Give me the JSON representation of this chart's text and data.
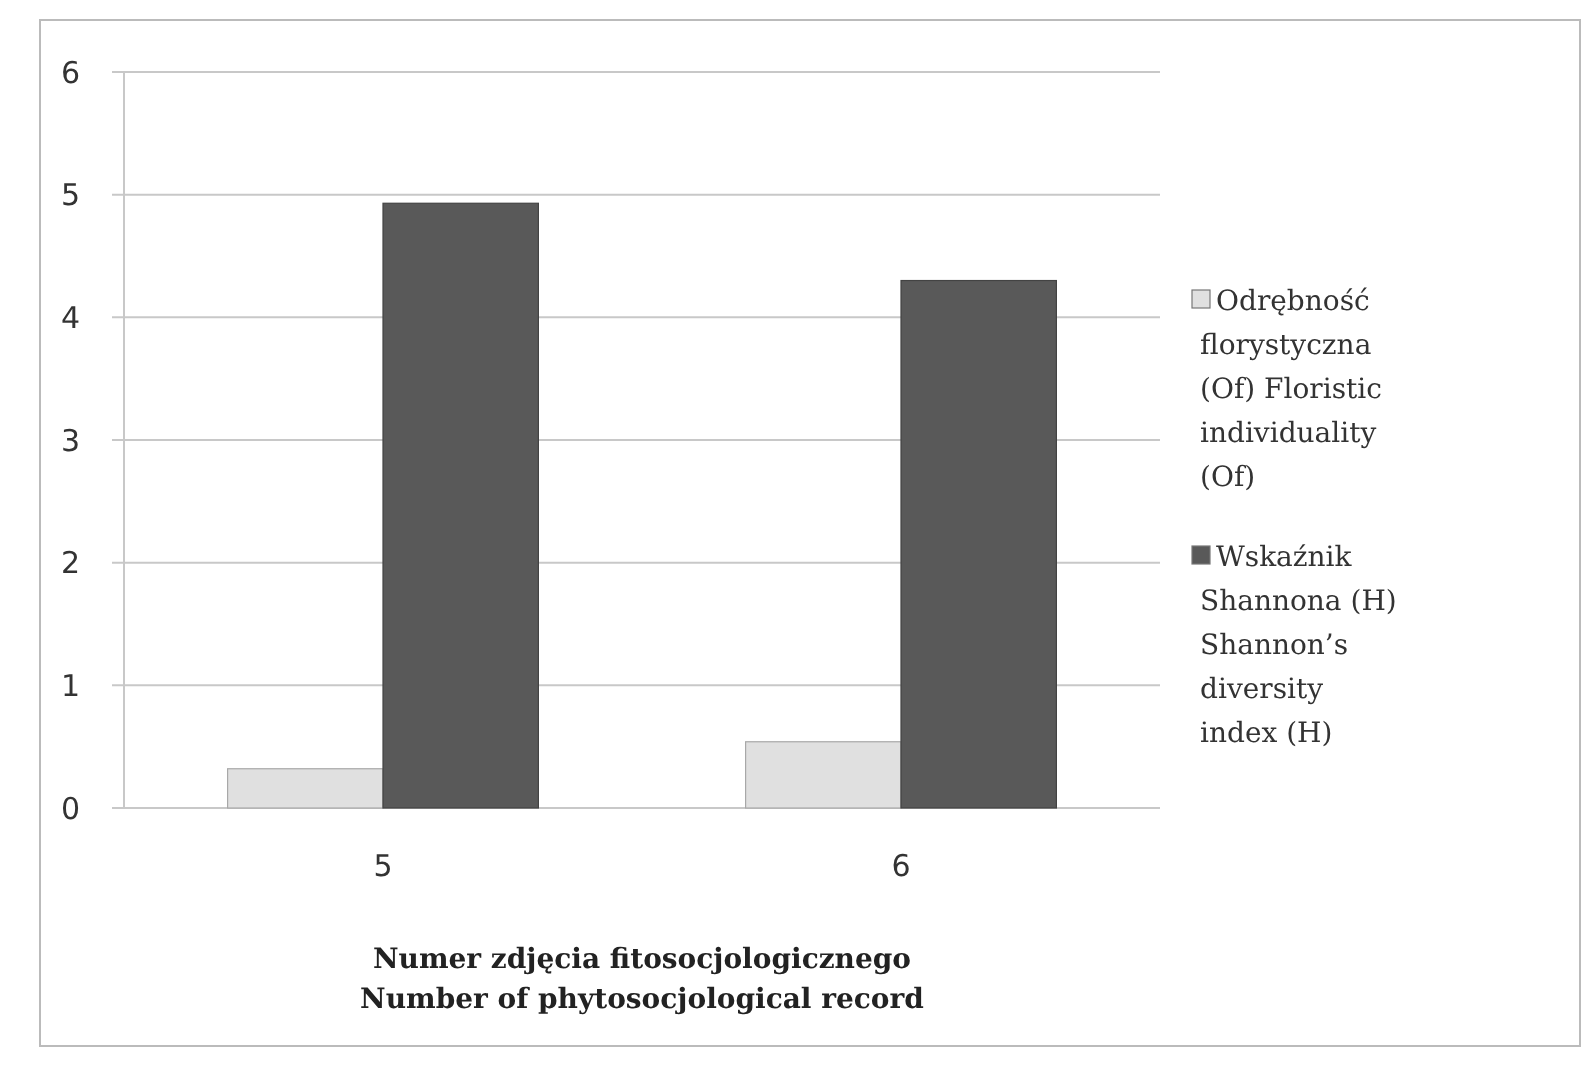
{
  "chart_data": {
    "type": "bar",
    "xlabel": "Numer zdjęcia fitosocjologicznego\nNumber of phytosocjological record",
    "categories": [
      "5",
      "6"
    ],
    "series": [
      {
        "name": "Odrębność florystyczna (Of) Floristic individuality (Of)",
        "color": "#e0e0e0",
        "values": [
          0.32,
          0.54
        ]
      },
      {
        "name": "Wskaźnik Shannona (H) Shannon’s diversity index (H)",
        "color": "#595959",
        "values": [
          4.93,
          4.3
        ]
      }
    ],
    "ylim": [
      0,
      6
    ],
    "yticks": [
      0,
      1,
      2,
      3,
      4,
      5,
      6
    ],
    "grid": "y",
    "legend": "right"
  }
}
